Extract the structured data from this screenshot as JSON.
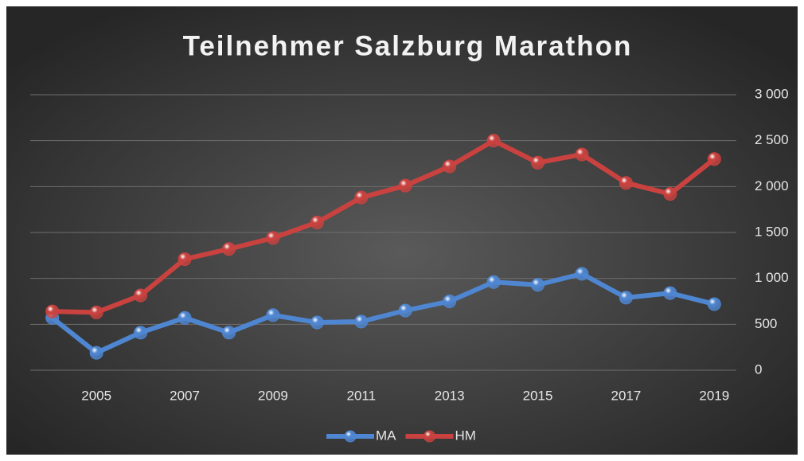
{
  "chart_data": {
    "type": "line",
    "title": "Teilnehmer Salzburg Marathon",
    "x": [
      2004,
      2005,
      2006,
      2007,
      2008,
      2009,
      2010,
      2011,
      2012,
      2013,
      2014,
      2015,
      2016,
      2017,
      2018,
      2019
    ],
    "xlim": [
      2003.5,
      2019.5
    ],
    "xticks": [
      2005,
      2007,
      2009,
      2011,
      2013,
      2015,
      2017,
      2019
    ],
    "ylim": [
      0,
      3000
    ],
    "yticks": [
      0,
      500,
      {
        "value": 1000,
        "label": "1 000"
      },
      {
        "value": 1500,
        "label": "1 500"
      },
      {
        "value": 2000,
        "label": "2 000"
      },
      {
        "value": 2500,
        "label": "2 500"
      },
      {
        "value": 3000,
        "label": "3 000"
      }
    ],
    "grid": true,
    "legend": "bottom",
    "series": [
      {
        "name": "MA",
        "color": "#4f86d1",
        "values": [
          570,
          190,
          410,
          570,
          410,
          600,
          520,
          530,
          650,
          750,
          960,
          930,
          1050,
          790,
          840,
          720
        ]
      },
      {
        "name": "HM",
        "color": "#c9423f",
        "values": [
          640,
          630,
          815,
          1210,
          1320,
          1440,
          1610,
          1880,
          2010,
          2220,
          2500,
          2260,
          2350,
          2040,
          1920,
          2300
        ]
      }
    ]
  }
}
